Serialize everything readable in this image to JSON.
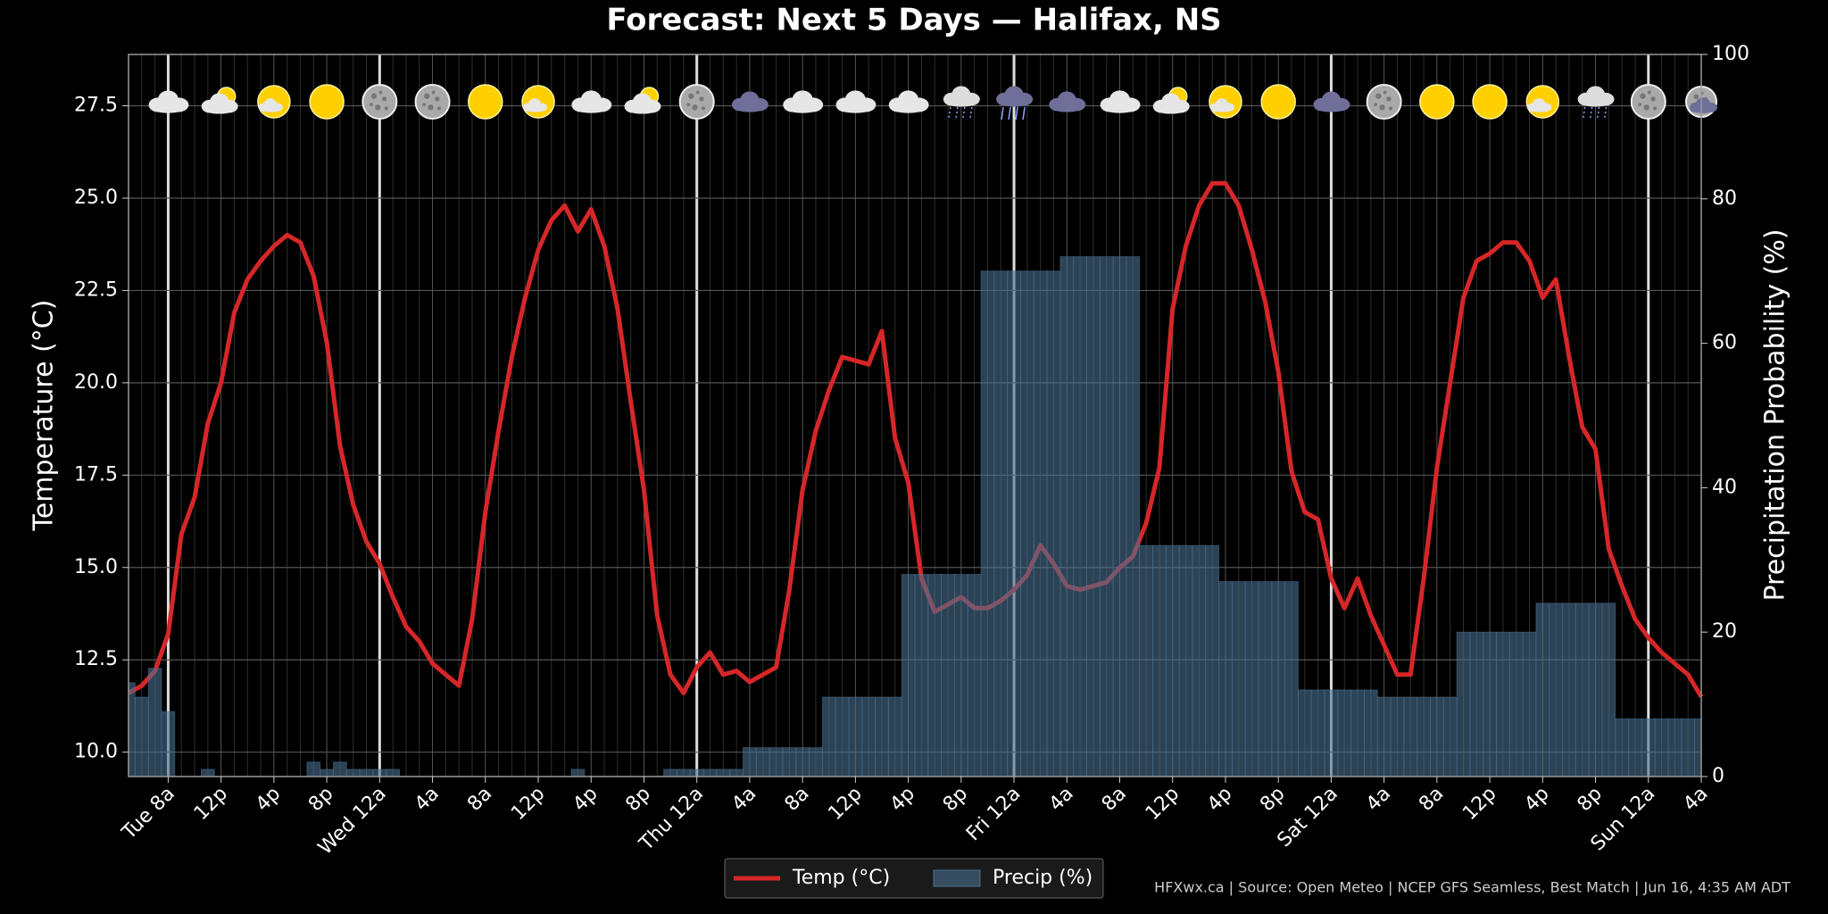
{
  "chart_data": {
    "type": "line",
    "title": "Forecast: Next 5 Days — Halifax, NS",
    "footer": "HFXwx.ca | Source: Open Meteo | NCEP GFS Seamless, Best Match | Jun 16, 4:35 AM ADT",
    "ylabel": "Temperature (°C)",
    "y2label": "Precipitation Probability (%)",
    "categories": [
      null,
      null,
      null,
      "Tue 8a",
      null,
      null,
      null,
      "12p",
      null,
      null,
      null,
      "4p",
      null,
      null,
      null,
      "8p",
      null,
      null,
      null,
      "Wed 12a",
      null,
      null,
      null,
      "4a",
      null,
      null,
      null,
      "8a",
      null,
      null,
      null,
      "12p",
      null,
      null,
      null,
      "4p",
      null,
      null,
      null,
      "8p",
      null,
      null,
      null,
      "Thu 12a",
      null,
      null,
      null,
      "4a",
      null,
      null,
      null,
      "8a",
      null,
      null,
      null,
      "12p",
      null,
      null,
      null,
      "4p",
      null,
      null,
      null,
      "8p",
      null,
      null,
      null,
      "Fri 12a",
      null,
      null,
      null,
      "4a",
      null,
      null,
      null,
      "8a",
      null,
      null,
      null,
      "12p",
      null,
      null,
      null,
      "4p",
      null,
      null,
      null,
      "8p",
      null,
      null,
      null,
      "Sat 12a",
      null,
      null,
      null,
      "4a",
      null,
      null,
      null,
      "8a",
      null,
      null,
      null,
      "12p",
      null,
      null,
      null,
      "4p",
      null,
      null,
      null,
      "8p",
      null,
      null,
      null,
      "Sun 12a",
      null,
      null,
      null,
      "4a"
    ],
    "series": [
      {
        "name": "Temp (°C)",
        "type": "line",
        "color": "#d62728",
        "values": [
          11.6,
          11.8,
          12.2,
          13.2,
          15.9,
          16.9,
          18.9,
          20.0,
          21.9,
          22.8,
          23.3,
          23.7,
          24.0,
          23.8,
          22.9,
          21.1,
          18.3,
          16.7,
          15.7,
          15.1,
          14.2,
          13.4,
          13.0,
          12.4,
          12.1,
          11.8,
          13.6,
          16.5,
          18.7,
          20.7,
          22.3,
          23.6,
          24.4,
          24.8,
          24.1,
          24.7,
          23.7,
          22.0,
          19.5,
          17.1,
          13.7,
          12.1,
          11.6,
          12.3,
          12.7,
          12.1,
          12.2,
          11.9,
          12.1,
          12.3,
          14.4,
          17.1,
          18.7,
          19.8,
          20.7,
          20.6,
          20.5,
          21.4,
          18.5,
          17.3,
          14.7,
          13.8,
          14.0,
          14.2,
          13.9,
          13.9,
          14.1,
          14.4,
          14.8,
          15.6,
          15.1,
          14.5,
          14.4,
          14.5,
          14.6,
          15.0,
          15.3,
          16.2,
          17.7,
          22.0,
          23.7,
          24.8,
          25.4,
          25.4,
          24.8,
          23.6,
          22.2,
          20.3,
          17.6,
          16.5,
          16.3,
          14.7,
          13.9,
          14.7,
          13.7,
          12.9,
          12.1,
          12.1,
          14.7,
          17.7,
          20.0,
          22.3,
          23.3,
          23.5,
          23.8,
          23.8,
          23.3,
          22.3,
          22.8,
          20.7,
          18.8,
          18.2,
          15.5,
          14.5,
          13.6,
          13.1,
          12.7,
          12.4,
          12.1,
          11.5
        ]
      },
      {
        "name": "Precip (%)",
        "type": "bar",
        "axis": "y2",
        "color": "#4a7090",
        "values": [
          13,
          11,
          15,
          9,
          0,
          0,
          1,
          0,
          0,
          0,
          0,
          0,
          0,
          0,
          2,
          1,
          2,
          1,
          1,
          1,
          1,
          0,
          0,
          0,
          0,
          0,
          0,
          0,
          0,
          0,
          0,
          0,
          0,
          0,
          1,
          0,
          0,
          0,
          0,
          0,
          0,
          1,
          1,
          1,
          1,
          1,
          1,
          4,
          4,
          4,
          4,
          4,
          4,
          11,
          11,
          11,
          11,
          11,
          11,
          28,
          28,
          28,
          28,
          28,
          28,
          70,
          70,
          70,
          70,
          70,
          70,
          72,
          72,
          72,
          72,
          72,
          72,
          32,
          32,
          32,
          32,
          32,
          32,
          27,
          27,
          27,
          27,
          27,
          27,
          12,
          12,
          12,
          12,
          12,
          12,
          11,
          11,
          11,
          11,
          11,
          11,
          20,
          20,
          20,
          20,
          20,
          20,
          24,
          24,
          24,
          24,
          24,
          24,
          8,
          8,
          8,
          8,
          8,
          8,
          8
        ]
      }
    ],
    "ylim": [
      9.34,
      28.89
    ],
    "yticks": [
      {
        "value": 10,
        "label": "10.0"
      },
      12.5,
      {
        "value": 15,
        "label": "15.0"
      },
      17.5,
      {
        "value": 20,
        "label": "20.0"
      },
      22.5,
      {
        "value": 25,
        "label": "25.0"
      },
      27.5
    ],
    "y2lim": [
      0,
      100
    ],
    "y2ticks": [
      0,
      20,
      40,
      60,
      80,
      100
    ],
    "grid": true,
    "legend": "lower center"
  }
}
